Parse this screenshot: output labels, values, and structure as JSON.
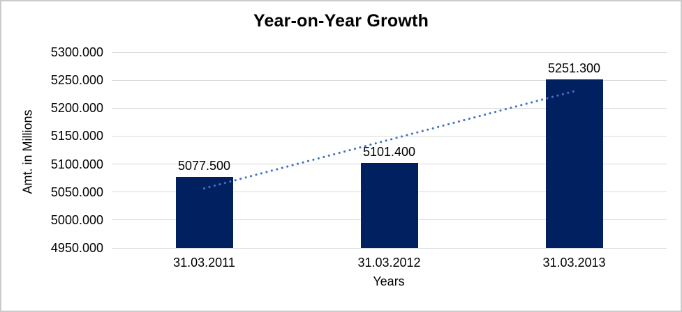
{
  "window": {
    "background": "#ffffff",
    "frame_border_color": "#cbcbcb"
  },
  "chart_data": {
    "type": "bar",
    "title": "Year-on-Year Growth",
    "xlabel": "Years",
    "ylabel": "Amt. in Millions",
    "categories": [
      "31.03.2011",
      "31.03.2012",
      "31.03.2013"
    ],
    "series": [
      {
        "name": "Amount",
        "values": [
          5077.5,
          5101.4,
          5251.3
        ]
      }
    ],
    "data_labels": [
      "5077.500",
      "5101.400",
      "5251.300"
    ],
    "ylim": [
      4950,
      5300
    ],
    "ytick_step": 50,
    "ytick_labels": [
      "4950.000",
      "5000.000",
      "5050.000",
      "5100.000",
      "5150.000",
      "5200.000",
      "5250.000",
      "5300.000"
    ],
    "grid": true,
    "legend": "none",
    "trendline": {
      "type": "linear",
      "start_value": 5056.5,
      "end_value": 5230.3,
      "style": "dotted",
      "color": "#4472c4"
    },
    "colors": {
      "bar": "#002060",
      "gridline": "#d9d9d9",
      "text": "#000000"
    }
  }
}
